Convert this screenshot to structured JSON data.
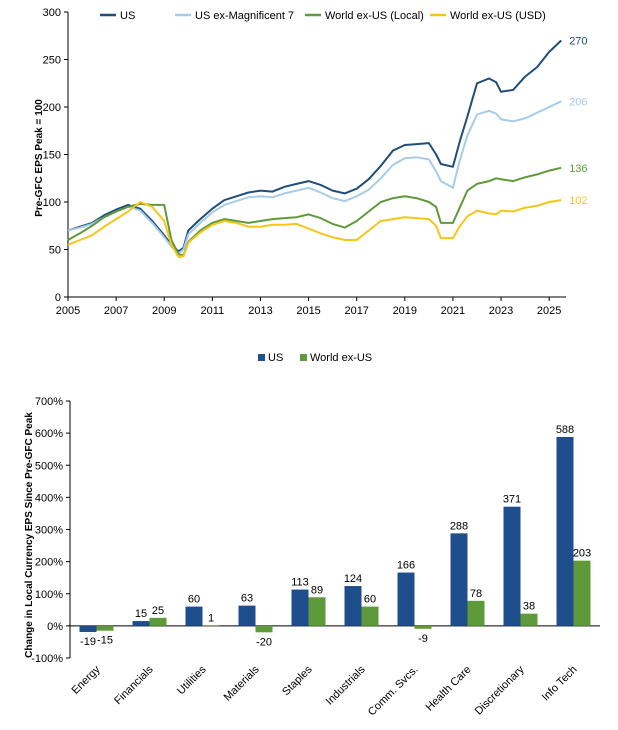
{
  "chart_data": [
    {
      "type": "line",
      "ylabel": "Pre-GFC EPS Peak = 100",
      "ylim": [
        0,
        300
      ],
      "xlim": [
        2005,
        2025.7
      ],
      "x_ticks": [
        "2005",
        "2007",
        "2009",
        "2011",
        "2013",
        "2015",
        "2017",
        "2019",
        "2021",
        "2023",
        "2025"
      ],
      "y_ticks": [
        "0",
        "50",
        "100",
        "150",
        "200",
        "250",
        "300"
      ],
      "legend_position": "top",
      "grid": false,
      "series": [
        {
          "name": "US",
          "color": "#1f4e79",
          "end_label": "270",
          "points": [
            [
              2005,
              70
            ],
            [
              2005.5,
              74
            ],
            [
              2006,
              78
            ],
            [
              2006.5,
              86
            ],
            [
              2007,
              92
            ],
            [
              2007.5,
              97
            ],
            [
              2008,
              93
            ],
            [
              2008.5,
              80
            ],
            [
              2009,
              65
            ],
            [
              2009.3,
              55
            ],
            [
              2009.6,
              48
            ],
            [
              2009.8,
              52
            ],
            [
              2010,
              70
            ],
            [
              2010.5,
              82
            ],
            [
              2011,
              93
            ],
            [
              2011.5,
              102
            ],
            [
              2012,
              106
            ],
            [
              2012.5,
              110
            ],
            [
              2013,
              112
            ],
            [
              2013.5,
              111
            ],
            [
              2014,
              116
            ],
            [
              2014.5,
              119
            ],
            [
              2015,
              122
            ],
            [
              2015.5,
              118
            ],
            [
              2016,
              112
            ],
            [
              2016.5,
              109
            ],
            [
              2017,
              114
            ],
            [
              2017.5,
              124
            ],
            [
              2018,
              138
            ],
            [
              2018.5,
              154
            ],
            [
              2019,
              160
            ],
            [
              2019.5,
              161
            ],
            [
              2020,
              162
            ],
            [
              2020.3,
              150
            ],
            [
              2020.5,
              140
            ],
            [
              2021,
              137
            ],
            [
              2021.3,
              165
            ],
            [
              2021.6,
              190
            ],
            [
              2022,
              225
            ],
            [
              2022.5,
              230
            ],
            [
              2022.8,
              226
            ],
            [
              2023,
              216
            ],
            [
              2023.5,
              218
            ],
            [
              2024,
              232
            ],
            [
              2024.5,
              242
            ],
            [
              2025,
              258
            ],
            [
              2025.5,
              270
            ]
          ]
        },
        {
          "name": "US ex-Magnificent 7",
          "color": "#a8cbe6",
          "end_label": "206",
          "points": [
            [
              2005,
              70
            ],
            [
              2005.5,
              73
            ],
            [
              2006,
              77
            ],
            [
              2006.5,
              84
            ],
            [
              2007,
              90
            ],
            [
              2007.5,
              95
            ],
            [
              2008,
              91
            ],
            [
              2008.5,
              78
            ],
            [
              2009,
              63
            ],
            [
              2009.3,
              53
            ],
            [
              2009.6,
              46
            ],
            [
              2009.8,
              50
            ],
            [
              2010,
              66
            ],
            [
              2010.5,
              78
            ],
            [
              2011,
              89
            ],
            [
              2011.5,
              97
            ],
            [
              2012,
              101
            ],
            [
              2012.5,
              105
            ],
            [
              2013,
              106
            ],
            [
              2013.5,
              105
            ],
            [
              2014,
              109
            ],
            [
              2014.5,
              112
            ],
            [
              2015,
              115
            ],
            [
              2015.5,
              110
            ],
            [
              2016,
              104
            ],
            [
              2016.5,
              101
            ],
            [
              2017,
              106
            ],
            [
              2017.5,
              113
            ],
            [
              2018,
              125
            ],
            [
              2018.5,
              139
            ],
            [
              2019,
              146
            ],
            [
              2019.5,
              147
            ],
            [
              2020,
              145
            ],
            [
              2020.3,
              132
            ],
            [
              2020.5,
              122
            ],
            [
              2021,
              115
            ],
            [
              2021.3,
              145
            ],
            [
              2021.6,
              170
            ],
            [
              2022,
              192
            ],
            [
              2022.5,
              196
            ],
            [
              2022.8,
              193
            ],
            [
              2023,
              187
            ],
            [
              2023.5,
              185
            ],
            [
              2024,
              188
            ],
            [
              2024.5,
              194
            ],
            [
              2025,
              200
            ],
            [
              2025.5,
              206
            ]
          ]
        },
        {
          "name": "World ex-US (Local)",
          "color": "#5f9a3a",
          "end_label": "136",
          "points": [
            [
              2005,
              60
            ],
            [
              2005.5,
              67
            ],
            [
              2006,
              75
            ],
            [
              2006.5,
              84
            ],
            [
              2007,
              90
            ],
            [
              2007.5,
              95
            ],
            [
              2008,
              98
            ],
            [
              2008.5,
              97
            ],
            [
              2009,
              97
            ],
            [
              2009.3,
              60
            ],
            [
              2009.6,
              45
            ],
            [
              2009.8,
              44
            ],
            [
              2010,
              58
            ],
            [
              2010.5,
              70
            ],
            [
              2011,
              78
            ],
            [
              2011.5,
              82
            ],
            [
              2012,
              80
            ],
            [
              2012.5,
              78
            ],
            [
              2013,
              80
            ],
            [
              2013.5,
              82
            ],
            [
              2014,
              83
            ],
            [
              2014.5,
              84
            ],
            [
              2015,
              87
            ],
            [
              2015.5,
              83
            ],
            [
              2016,
              77
            ],
            [
              2016.5,
              73
            ],
            [
              2017,
              80
            ],
            [
              2017.5,
              90
            ],
            [
              2018,
              100
            ],
            [
              2018.5,
              104
            ],
            [
              2019,
              106
            ],
            [
              2019.5,
              104
            ],
            [
              2020,
              100
            ],
            [
              2020.3,
              95
            ],
            [
              2020.5,
              78
            ],
            [
              2021,
              78
            ],
            [
              2021.3,
              95
            ],
            [
              2021.6,
              112
            ],
            [
              2022,
              119
            ],
            [
              2022.5,
              122
            ],
            [
              2022.8,
              125
            ],
            [
              2023,
              124
            ],
            [
              2023.5,
              122
            ],
            [
              2024,
              126
            ],
            [
              2024.5,
              129
            ],
            [
              2025,
              133
            ],
            [
              2025.5,
              136
            ]
          ]
        },
        {
          "name": "World ex-US (USD)",
          "color": "#f5c518",
          "end_label": "102",
          "points": [
            [
              2005,
              55
            ],
            [
              2005.5,
              60
            ],
            [
              2006,
              65
            ],
            [
              2006.5,
              74
            ],
            [
              2007,
              82
            ],
            [
              2007.5,
              90
            ],
            [
              2008,
              100
            ],
            [
              2008.5,
              95
            ],
            [
              2009,
              80
            ],
            [
              2009.3,
              55
            ],
            [
              2009.6,
              42
            ],
            [
              2009.8,
              43
            ],
            [
              2010,
              57
            ],
            [
              2010.5,
              68
            ],
            [
              2011,
              76
            ],
            [
              2011.5,
              80
            ],
            [
              2012,
              78
            ],
            [
              2012.5,
              74
            ],
            [
              2013,
              74
            ],
            [
              2013.5,
              76
            ],
            [
              2014,
              76
            ],
            [
              2014.5,
              77
            ],
            [
              2015,
              72
            ],
            [
              2015.5,
              67
            ],
            [
              2016,
              63
            ],
            [
              2016.5,
              60
            ],
            [
              2017,
              60
            ],
            [
              2017.5,
              70
            ],
            [
              2018,
              80
            ],
            [
              2018.5,
              82
            ],
            [
              2019,
              84
            ],
            [
              2019.5,
              83
            ],
            [
              2020,
              82
            ],
            [
              2020.3,
              75
            ],
            [
              2020.5,
              62
            ],
            [
              2021,
              62
            ],
            [
              2021.3,
              75
            ],
            [
              2021.6,
              85
            ],
            [
              2022,
              91
            ],
            [
              2022.5,
              88
            ],
            [
              2022.8,
              87
            ],
            [
              2023,
              91
            ],
            [
              2023.5,
              90
            ],
            [
              2024,
              94
            ],
            [
              2024.5,
              96
            ],
            [
              2025,
              100
            ],
            [
              2025.5,
              102
            ]
          ]
        }
      ]
    },
    {
      "type": "bar",
      "ylabel": "Change in Local Currency EPS Since Pre-GFC Peak",
      "ylim": [
        -100,
        700
      ],
      "y_ticks": [
        "-100%",
        "0%",
        "100%",
        "200%",
        "300%",
        "400%",
        "500%",
        "600%",
        "700%"
      ],
      "legend_position": "top",
      "grid": false,
      "categories": [
        "Energy",
        "Financials",
        "Utilities",
        "Materials",
        "Staples",
        "Industrials",
        "Comm. Svcs.",
        "Health Care",
        "Discretionary",
        "Info Tech"
      ],
      "series": [
        {
          "name": "US",
          "color": "#1f4e8c",
          "values": [
            -19,
            15,
            60,
            63,
            113,
            124,
            166,
            288,
            371,
            588
          ],
          "labels": [
            "-19",
            "15",
            "60",
            "63",
            "113",
            "124",
            "166",
            "288",
            "371",
            "588"
          ]
        },
        {
          "name": "World ex-US",
          "color": "#5f9a3a",
          "values": [
            -15,
            25,
            1,
            -20,
            89,
            60,
            -9,
            78,
            38,
            203
          ],
          "labels": [
            "-15",
            "25",
            "1",
            "-20",
            "89",
            "60",
            "-9",
            "78",
            "38",
            "203"
          ]
        }
      ]
    }
  ]
}
